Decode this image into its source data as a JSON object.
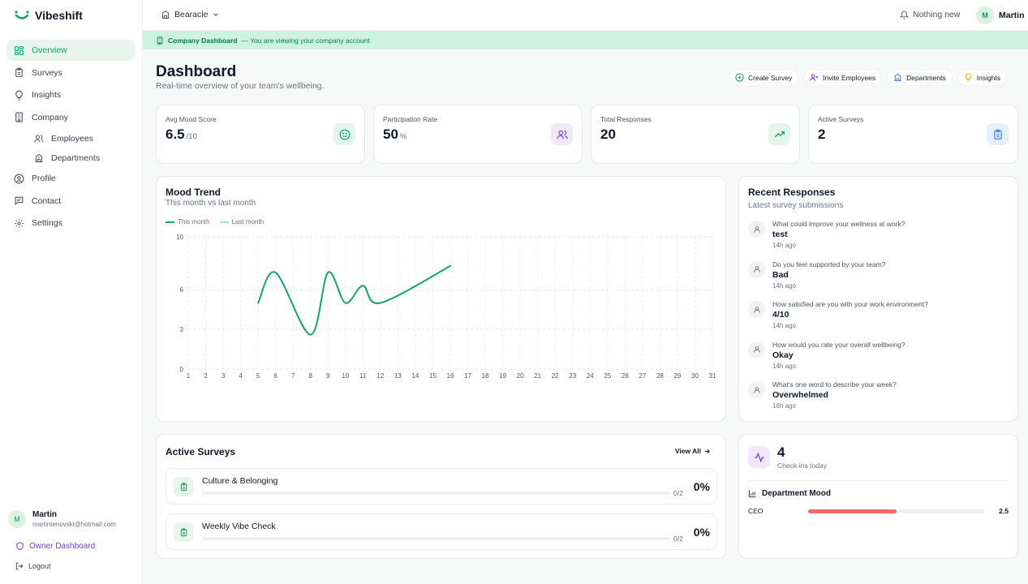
{
  "app": {
    "name": "Vibeshift"
  },
  "sidebar": {
    "items": [
      {
        "label": "Overview",
        "icon": "grid-icon"
      },
      {
        "label": "Surveys",
        "icon": "clipboard-icon"
      },
      {
        "label": "Insights",
        "icon": "lightbulb-icon"
      },
      {
        "label": "Company",
        "icon": "building-icon"
      },
      {
        "label": "Employees",
        "icon": "users-icon"
      },
      {
        "label": "Departments",
        "icon": "building-2-icon"
      },
      {
        "label": "Profile",
        "icon": "user-circle-icon"
      },
      {
        "label": "Contact",
        "icon": "message-icon"
      },
      {
        "label": "Settings",
        "icon": "gear-icon"
      }
    ],
    "active": "Overview",
    "user": {
      "initial": "M",
      "name": "Martin",
      "email": "martintenovski@hotmail.com"
    },
    "owner_dashboard": "Owner Dashboard",
    "logout": "Logout"
  },
  "topbar": {
    "org": "Bearacle",
    "notifications": "Nothing new",
    "user": {
      "initial": "M",
      "name": "Martin"
    }
  },
  "banner": {
    "title": "Company Dashboard",
    "text": "— You are viewing your company account"
  },
  "header": {
    "title": "Dashboard",
    "subtitle": "Real-time overview of your team's wellbeing.",
    "actions": [
      "Create Survey",
      "Invite Employees",
      "Departments",
      "Insights"
    ]
  },
  "stats": [
    {
      "label": "Avg Mood Score",
      "value": "6.5",
      "unit": "/10",
      "icon": "smile-icon"
    },
    {
      "label": "Participation Rate",
      "value": "50",
      "unit": "%",
      "icon": "users-icon"
    },
    {
      "label": "Total Responses",
      "value": "20",
      "unit": "",
      "icon": "trending-up-icon"
    },
    {
      "label": "Active Surveys",
      "value": "2",
      "unit": "",
      "icon": "clipboard-icon"
    }
  ],
  "mood_trend": {
    "title": "Mood Trend",
    "subtitle": "This month vs last month"
  },
  "chart_data": {
    "type": "line",
    "x": [
      1,
      2,
      3,
      4,
      5,
      6,
      7,
      8,
      9,
      10,
      11,
      12,
      13,
      14,
      15,
      16,
      17,
      18,
      19,
      20,
      21,
      22,
      23,
      24,
      25,
      26,
      27,
      28,
      29,
      30,
      31
    ],
    "yticks": [
      0,
      3,
      6,
      10
    ],
    "ylim": [
      0,
      10
    ],
    "grid": true,
    "legend": "top-left",
    "series": [
      {
        "name": "This month",
        "color": "#10a472",
        "points": [
          [
            5,
            5.0
          ],
          [
            6,
            7.3
          ],
          [
            8,
            2.6
          ],
          [
            9,
            7.3
          ],
          [
            10,
            5.0
          ],
          [
            11,
            6.3
          ],
          [
            12,
            5.0
          ],
          [
            16,
            7.8
          ]
        ]
      },
      {
        "name": "Last month",
        "color": "#a7e3c8",
        "points": []
      }
    ]
  },
  "recent": {
    "title": "Recent Responses",
    "subtitle": "Latest survey submissions",
    "items": [
      {
        "question": "What could improve your wellness at work?",
        "answer": "test",
        "time": "14h ago"
      },
      {
        "question": "Do you feel supported by your team?",
        "answer": "Bad",
        "time": "14h ago"
      },
      {
        "question": "How satisfied are you with your work environment?",
        "answer": "4/10",
        "time": "14h ago"
      },
      {
        "question": "How would you rate your overall wellbeing?",
        "answer": "Okay",
        "time": "14h ago"
      },
      {
        "question": "What's one word to describe your week?",
        "answer": "Overwhelmed",
        "time": "16h ago"
      }
    ]
  },
  "active_surveys": {
    "title": "Active Surveys",
    "view_all": "View All",
    "items": [
      {
        "name": "Culture & Belonging",
        "count": "0/2",
        "pct": "0%",
        "progress": 0
      },
      {
        "name": "Weekly Vibe Check",
        "count": "0/2",
        "pct": "0%",
        "progress": 0
      }
    ]
  },
  "checkins": {
    "value": "4",
    "label": "Check-ins today"
  },
  "department_mood": {
    "title": "Department Mood",
    "items": [
      {
        "name": "CEO",
        "value": "2.5",
        "fraction": 0.5
      }
    ]
  },
  "colors": {
    "accent": "#0e9f66",
    "banner": "#cdf3e0",
    "owner": "#7c3aed",
    "dept_bar": "#ef6b6b"
  }
}
